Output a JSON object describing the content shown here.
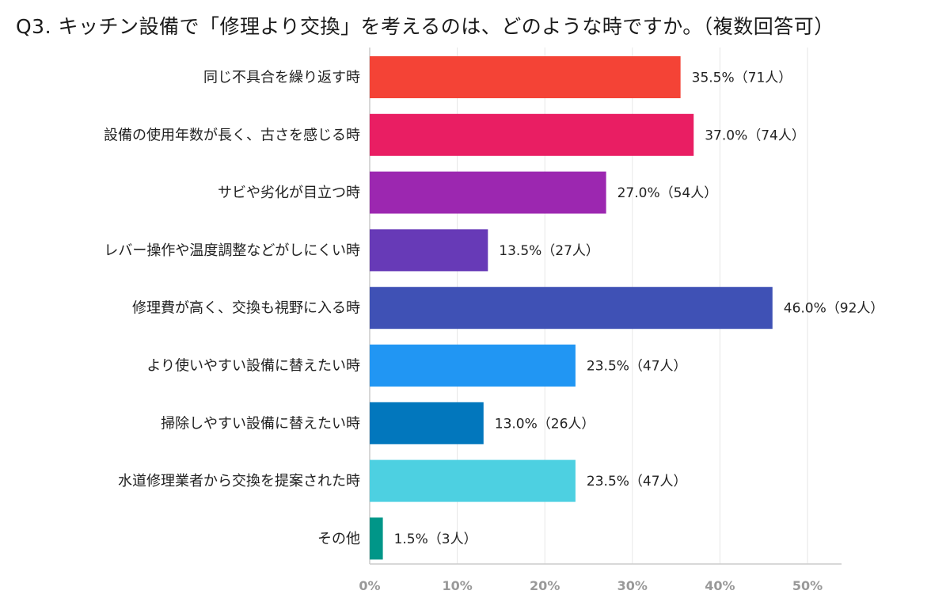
{
  "chart_data": {
    "type": "bar",
    "orientation": "horizontal",
    "title": "Q3. キッチン設備で「修理より交換」を考えるのは、どのような時ですか。（複数回答可）",
    "categories": [
      "同じ不具合を繰り返す時",
      "設備の使用年数が長く、古さを感じる時",
      "サビや劣化が目立つ時",
      "レバー操作や温度調整などがしにくい時",
      "修理費が高く、交換も視野に入る時",
      "より使いやすい設備に替えたい時",
      "掃除しやすい設備に替えたい時",
      "水道修理業者から交換を提案された時",
      "その他"
    ],
    "values": [
      35.5,
      37.0,
      27.0,
      13.5,
      46.0,
      23.5,
      13.0,
      23.5,
      1.5
    ],
    "data_labels": [
      "35.5%（71人）",
      "37.0%（74人）",
      "27.0%（54人）",
      "13.5%（27人）",
      "46.0%（92人）",
      "23.5%（47人）",
      "13.0%（26人）",
      "23.5%（47人）",
      "1.5%（3人）"
    ],
    "colors": [
      "#f44336",
      "#e91e63",
      "#9c27b0",
      "#673ab7",
      "#3f51b5",
      "#2196f3",
      "#0277bd",
      "#4dd0e1",
      "#009688"
    ],
    "xlim": [
      0,
      50
    ],
    "x_ticks": [
      "0%",
      "10%",
      "20%",
      "30%",
      "40%",
      "50%"
    ],
    "grid": true
  }
}
